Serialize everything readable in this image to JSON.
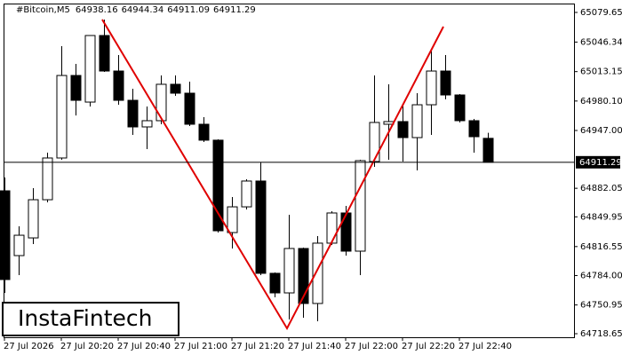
{
  "chart_data": {
    "type": "candlestick",
    "title": "#Bitcoin,M5",
    "logo": "InstaFintech",
    "categories": [
      "27 Jul 2026",
      null,
      null,
      null,
      "27 Jul 20:20",
      null,
      null,
      null,
      "27 Jul 20:40",
      null,
      null,
      null,
      "27 Jul 21:00",
      null,
      null,
      null,
      "27 Jul 21:20",
      null,
      null,
      null,
      "27 Jul 21:40",
      null,
      null,
      null,
      "27 Jul 22:00",
      null,
      null,
      null,
      "27 Jul 22:20",
      null,
      null,
      null,
      "27 Jul 22:40",
      null,
      null
    ],
    "open": [
      64879.2,
      64806.4,
      64826.3,
      64869.2,
      64916.1,
      65008.8,
      64978.9,
      65053.7,
      65013.8,
      64980.9,
      64951.0,
      64958.0,
      64998.9,
      64988.9,
      64954.0,
      64936.1,
      64832.3,
      64861.2,
      64890.2,
      64786.5,
      64764.5,
      64814.4,
      64752.6,
      64820.4,
      64854.3,
      64811.4,
      64912.1,
      64954.0,
      64957.0,
      64939.0,
      64975.9,
      65013.8,
      64986.9,
      64958.0,
      64938.16
    ],
    "high": [
      64894.2,
      64839.3,
      64882.2,
      64922.1,
      65041.7,
      65021.8,
      65053.7,
      65071.6,
      65031.8,
      64993.9,
      64973.9,
      65008.8,
      65008.8,
      65001.9,
      64962.0,
      64937.1,
      64872.2,
      64892.2,
      64911.1,
      64787.5,
      64852.3,
      64815.4,
      64828.4,
      64856.3,
      64862.2,
      64914.1,
      65008.8,
      64998.9,
      64975.9,
      64988.9,
      65038.7,
      65031.8,
      64987.9,
      64960.0,
      64944.34
    ],
    "low": [
      64764.5,
      64784.5,
      64819.4,
      64866.2,
      64914.1,
      64963.9,
      64973.9,
      65012.8,
      64975.9,
      64942.0,
      64926.1,
      64954.0,
      64985.9,
      64952.0,
      64934.1,
      64832.3,
      64814.4,
      64858.2,
      64784.5,
      64759.5,
      64734.6,
      64736.6,
      64732.6,
      64818.4,
      64806.4,
      64784.5,
      64906.1,
      64914.1,
      64912.1,
      64902.1,
      64942.0,
      64982.0,
      64956.0,
      64922.1,
      64911.09
    ],
    "close": [
      64779.5,
      64829.3,
      64869.2,
      64916.1,
      65008.8,
      64980.9,
      65053.7,
      65013.8,
      64980.9,
      64951.0,
      64958.0,
      64998.9,
      64988.9,
      64954.0,
      64936.1,
      64834.3,
      64861.2,
      64890.2,
      64786.5,
      64764.5,
      64814.4,
      64752.6,
      64820.4,
      64854.3,
      64811.4,
      64913.1,
      64956.0,
      64957.0,
      64939.0,
      64975.9,
      65013.8,
      64986.9,
      64958.0,
      64940.0,
      64911.29
    ],
    "up_color": "#ffffff",
    "down_color": "#000000",
    "pattern_color": "#e00000",
    "ylim": [
      64714.66,
      65089.62
    ],
    "yticks": [
      65079.65,
      65046.34,
      65013.15,
      {
        "value": 64980.1,
        "label": "64980.10"
      },
      {
        "value": 64947.0,
        "label": "64947.00"
      },
      64882.05,
      64849.95,
      64816.55,
      {
        "value": 64784.0,
        "label": "64784.00"
      },
      64750.95,
      64718.65
    ]
  }
}
